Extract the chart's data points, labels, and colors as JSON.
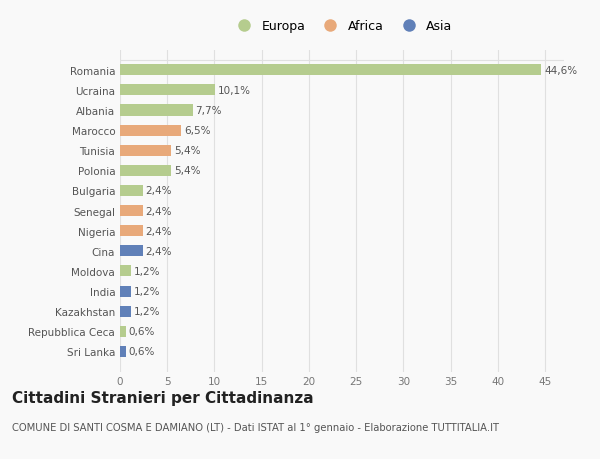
{
  "countries": [
    "Romania",
    "Ucraina",
    "Albania",
    "Marocco",
    "Tunisia",
    "Polonia",
    "Bulgaria",
    "Senegal",
    "Nigeria",
    "Cina",
    "Moldova",
    "India",
    "Kazakhstan",
    "Repubblica Ceca",
    "Sri Lanka"
  ],
  "values": [
    44.6,
    10.1,
    7.7,
    6.5,
    5.4,
    5.4,
    2.4,
    2.4,
    2.4,
    2.4,
    1.2,
    1.2,
    1.2,
    0.6,
    0.6
  ],
  "labels": [
    "44,6%",
    "10,1%",
    "7,7%",
    "6,5%",
    "5,4%",
    "5,4%",
    "2,4%",
    "2,4%",
    "2,4%",
    "2,4%",
    "1,2%",
    "1,2%",
    "1,2%",
    "0,6%",
    "0,6%"
  ],
  "continents": [
    "Europa",
    "Europa",
    "Europa",
    "Africa",
    "Africa",
    "Europa",
    "Europa",
    "Africa",
    "Africa",
    "Asia",
    "Europa",
    "Asia",
    "Asia",
    "Europa",
    "Asia"
  ],
  "colors": {
    "Europa": "#b5cc8e",
    "Africa": "#e8a97a",
    "Asia": "#6080b8"
  },
  "xlim": [
    0,
    47
  ],
  "xticks": [
    0,
    5,
    10,
    15,
    20,
    25,
    30,
    35,
    40,
    45
  ],
  "title": "Cittadini Stranieri per Cittadinanza",
  "subtitle": "COMUNE DI SANTI COSMA E DAMIANO (LT) - Dati ISTAT al 1° gennaio - Elaborazione TUTTITALIA.IT",
  "background_color": "#f9f9f9",
  "grid_color": "#e0e0e0",
  "bar_height": 0.55,
  "label_fontsize": 7.5,
  "ytick_fontsize": 7.5,
  "xtick_fontsize": 7.5,
  "title_fontsize": 11,
  "subtitle_fontsize": 7.2
}
